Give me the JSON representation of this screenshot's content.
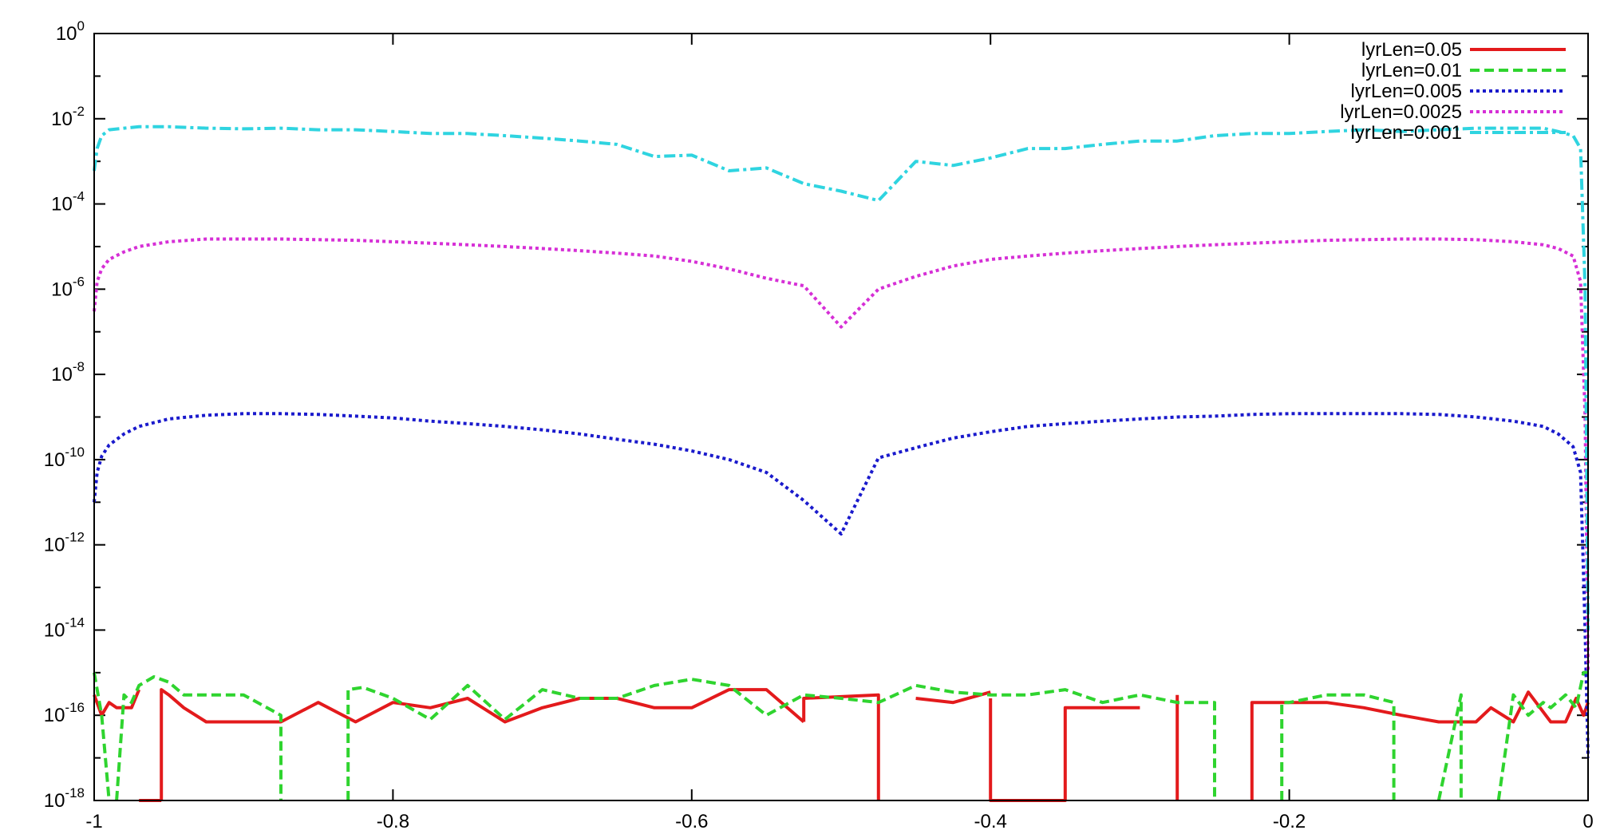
{
  "chart_data": {
    "type": "line",
    "title": "",
    "xlabel": "",
    "ylabel": "",
    "xlim": [
      -1,
      0
    ],
    "ylim": [
      1e-18,
      1
    ],
    "y_scale": "log",
    "grid": false,
    "legend_position": "top-right",
    "x_ticks": [
      {
        "value": -1,
        "label": "-1"
      },
      {
        "value": -0.8,
        "label": "-0.8"
      },
      {
        "value": -0.6,
        "label": "-0.6"
      },
      {
        "value": -0.4,
        "label": "-0.4"
      },
      {
        "value": -0.2,
        "label": "-0.2"
      },
      {
        "value": 0,
        "label": "0"
      }
    ],
    "y_ticks": [
      {
        "exp": 0,
        "base": "10",
        "sup": "0"
      },
      {
        "exp": -2,
        "base": "10",
        "sup": "-2"
      },
      {
        "exp": -4,
        "base": "10",
        "sup": "-4"
      },
      {
        "exp": -6,
        "base": "10",
        "sup": "-6"
      },
      {
        "exp": -8,
        "base": "10",
        "sup": "-8"
      },
      {
        "exp": -10,
        "base": "10",
        "sup": "-10"
      },
      {
        "exp": -12,
        "base": "10",
        "sup": "-12"
      },
      {
        "exp": -14,
        "base": "10",
        "sup": "-14"
      },
      {
        "exp": -16,
        "base": "10",
        "sup": "-16"
      },
      {
        "exp": -18,
        "base": "10",
        "sup": "-18"
      }
    ],
    "series": [
      {
        "name": "lyrLen=0.05",
        "color": "#e31a1c",
        "dash": "solid",
        "x": [
          -1.0,
          -0.995,
          -0.99,
          -0.985,
          -0.98,
          -0.975,
          -0.97,
          -0.97,
          -0.97,
          -0.955,
          -0.955,
          -0.955,
          -0.95,
          -0.94,
          -0.925,
          -0.9,
          -0.875,
          -0.85,
          -0.825,
          -0.8,
          -0.775,
          -0.75,
          -0.725,
          -0.7,
          -0.675,
          -0.65,
          -0.625,
          -0.6,
          -0.575,
          -0.55,
          -0.525,
          -0.525,
          -0.525,
          -0.475,
          -0.475,
          -0.475,
          -0.45,
          -0.425,
          -0.4,
          -0.4,
          -0.4,
          -0.35,
          -0.35,
          -0.35,
          -0.3,
          -0.275,
          -0.275,
          -0.275,
          -0.225,
          -0.225,
          -0.225,
          -0.2,
          -0.175,
          -0.15,
          -0.125,
          -0.1,
          -0.075,
          -0.065,
          -0.05,
          -0.04,
          -0.025,
          -0.015,
          -0.008,
          -0.003,
          0.0
        ],
        "y": [
          3e-16,
          1e-16,
          2e-16,
          1.5e-16,
          1.5e-16,
          1.5e-16,
          4e-16,
          1e-18,
          1e-18,
          1e-18,
          1e-18,
          4e-16,
          3e-16,
          1.5e-16,
          7e-17,
          7e-17,
          7e-17,
          2e-16,
          7e-17,
          2e-16,
          1.5e-16,
          2.5e-16,
          7e-17,
          1.5e-16,
          2.5e-16,
          2.5e-16,
          1.5e-16,
          1.5e-16,
          4e-16,
          4e-16,
          7e-17,
          7e-17,
          2.5e-16,
          3e-16,
          1e-18,
          1e-18,
          2.5e-16,
          2e-16,
          3.5e-16,
          2.5e-16,
          1e-18,
          1e-18,
          1.5e-16,
          1.5e-16,
          1.5e-16,
          3e-16,
          1e-18,
          1e-18,
          1e-18,
          2e-16,
          2e-16,
          2e-16,
          2e-16,
          1.5e-16,
          1e-16,
          7e-17,
          7e-17,
          1.5e-16,
          7e-17,
          3.5e-16,
          7e-17,
          7e-17,
          2.5e-16,
          1e-16,
          2e-16
        ],
        "null_after": [
          6,
          9,
          30,
          35,
          38,
          44,
          47
        ]
      },
      {
        "name": "lyrLen=0.01",
        "color": "#2fd42f",
        "dash": "dashed",
        "x": [
          -1.0,
          -0.995,
          -0.99,
          -0.985,
          -0.98,
          -0.975,
          -0.97,
          -0.96,
          -0.95,
          -0.94,
          -0.925,
          -0.9,
          -0.875,
          -0.875,
          -0.83,
          -0.83,
          -0.82,
          -0.8,
          -0.775,
          -0.75,
          -0.725,
          -0.7,
          -0.675,
          -0.65,
          -0.625,
          -0.6,
          -0.575,
          -0.55,
          -0.525,
          -0.5,
          -0.475,
          -0.45,
          -0.425,
          -0.4,
          -0.375,
          -0.35,
          -0.325,
          -0.3,
          -0.275,
          -0.25,
          -0.25,
          -0.205,
          -0.205,
          -0.2,
          -0.175,
          -0.15,
          -0.13,
          -0.13,
          -0.1,
          -0.085,
          -0.085,
          -0.06,
          -0.05,
          -0.04,
          -0.03,
          -0.025,
          -0.015,
          -0.008,
          -0.003,
          0.0
        ],
        "y": [
          1e-15,
          1e-16,
          1e-18,
          1e-18,
          3e-16,
          2e-16,
          5e-16,
          8e-16,
          6e-16,
          3e-16,
          3e-16,
          3e-16,
          1e-16,
          1e-18,
          1e-18,
          4e-16,
          4.5e-16,
          2.5e-16,
          8e-17,
          5e-16,
          8e-17,
          4e-16,
          2.5e-16,
          2.5e-16,
          5e-16,
          7e-16,
          5e-16,
          1e-16,
          3e-16,
          2.5e-16,
          2e-16,
          5e-16,
          3.5e-16,
          3e-16,
          3e-16,
          4e-16,
          2e-16,
          3e-16,
          2e-16,
          2e-16,
          1e-18,
          1e-18,
          2e-16,
          2e-16,
          3e-16,
          3e-16,
          2e-16,
          1e-18,
          1e-18,
          3e-16,
          1e-18,
          1e-18,
          3e-16,
          1e-16,
          2e-16,
          1.5e-16,
          3e-16,
          1.5e-16,
          1e-15,
          1e-15
        ],
        "null_after": [
          2,
          13,
          40,
          47,
          50
        ]
      },
      {
        "name": "lyrLen=0.005",
        "color": "#1a1acc",
        "dash": "dotted",
        "x": [
          -1.0,
          -0.998,
          -0.995,
          -0.99,
          -0.98,
          -0.97,
          -0.95,
          -0.925,
          -0.9,
          -0.875,
          -0.85,
          -0.825,
          -0.8,
          -0.775,
          -0.75,
          -0.725,
          -0.7,
          -0.675,
          -0.65,
          -0.625,
          -0.6,
          -0.575,
          -0.55,
          -0.525,
          -0.5,
          -0.475,
          -0.45,
          -0.425,
          -0.4,
          -0.375,
          -0.35,
          -0.325,
          -0.3,
          -0.275,
          -0.25,
          -0.225,
          -0.2,
          -0.175,
          -0.15,
          -0.125,
          -0.1,
          -0.075,
          -0.05,
          -0.03,
          -0.02,
          -0.01,
          -0.005,
          -0.002,
          0.0
        ],
        "y": [
          1e-11,
          5e-11,
          1.2e-10,
          2.2e-10,
          4e-10,
          6e-10,
          9e-10,
          1.1e-09,
          1.2e-09,
          1.2e-09,
          1.15e-09,
          1.05e-09,
          9.5e-10,
          8e-10,
          7e-10,
          6e-10,
          5e-10,
          4e-10,
          3e-10,
          2.3e-10,
          1.6e-10,
          1e-10,
          5e-11,
          1.1e-11,
          1.8e-12,
          1.1e-10,
          1.9e-10,
          3.2e-10,
          4.5e-10,
          6e-10,
          7e-10,
          8e-10,
          9e-10,
          1e-09,
          1.05e-09,
          1.15e-09,
          1.2e-09,
          1.2e-09,
          1.2e-09,
          1.2e-09,
          1.15e-09,
          1e-09,
          8e-10,
          6e-10,
          4e-10,
          2e-10,
          5e-11,
          1e-14,
          1e-17
        ],
        "null_after": []
      },
      {
        "name": "lyrLen=0.0025",
        "color": "#d62fd6",
        "dash": "dotted",
        "x": [
          -1.0,
          -0.998,
          -0.995,
          -0.99,
          -0.98,
          -0.97,
          -0.95,
          -0.925,
          -0.9,
          -0.875,
          -0.85,
          -0.825,
          -0.8,
          -0.775,
          -0.75,
          -0.725,
          -0.7,
          -0.675,
          -0.65,
          -0.625,
          -0.6,
          -0.575,
          -0.55,
          -0.525,
          -0.5,
          -0.475,
          -0.45,
          -0.425,
          -0.4,
          -0.375,
          -0.35,
          -0.325,
          -0.3,
          -0.275,
          -0.25,
          -0.225,
          -0.2,
          -0.175,
          -0.15,
          -0.125,
          -0.1,
          -0.075,
          -0.05,
          -0.03,
          -0.02,
          -0.01,
          -0.005,
          -0.002,
          0.0
        ],
        "y": [
          3e-07,
          1.5e-06,
          3e-06,
          5e-06,
          7.5e-06,
          1e-05,
          1.3e-05,
          1.5e-05,
          1.5e-05,
          1.5e-05,
          1.45e-05,
          1.4e-05,
          1.3e-05,
          1.2e-05,
          1.1e-05,
          1e-05,
          9e-06,
          8e-06,
          7e-06,
          6e-06,
          4.5e-06,
          3e-06,
          1.8e-06,
          1.2e-06,
          1.3e-07,
          1e-06,
          2e-06,
          3.5e-06,
          5e-06,
          6e-06,
          7e-06,
          8e-06,
          9e-06,
          1e-05,
          1.1e-05,
          1.2e-05,
          1.3e-05,
          1.4e-05,
          1.45e-05,
          1.5e-05,
          1.5e-05,
          1.45e-05,
          1.3e-05,
          1.1e-05,
          9e-06,
          6e-06,
          1.5e-06,
          1e-09,
          1e-15
        ],
        "null_after": []
      },
      {
        "name": "lyrLen=0.001",
        "color": "#2fd4e0",
        "dash": "dashdot",
        "x": [
          -1.0,
          -0.998,
          -0.995,
          -0.99,
          -0.98,
          -0.97,
          -0.95,
          -0.925,
          -0.9,
          -0.875,
          -0.85,
          -0.825,
          -0.8,
          -0.775,
          -0.75,
          -0.725,
          -0.7,
          -0.675,
          -0.65,
          -0.625,
          -0.6,
          -0.575,
          -0.55,
          -0.525,
          -0.5,
          -0.475,
          -0.45,
          -0.425,
          -0.4,
          -0.375,
          -0.35,
          -0.325,
          -0.3,
          -0.275,
          -0.25,
          -0.225,
          -0.2,
          -0.175,
          -0.15,
          -0.125,
          -0.1,
          -0.075,
          -0.05,
          -0.03,
          -0.02,
          -0.01,
          -0.005,
          -0.002,
          0.0
        ],
        "y": [
          0.0006,
          0.002,
          0.004,
          0.0055,
          0.006,
          0.0065,
          0.0065,
          0.006,
          0.0058,
          0.006,
          0.0055,
          0.0055,
          0.005,
          0.0045,
          0.0045,
          0.004,
          0.0035,
          0.003,
          0.0025,
          0.0013,
          0.0014,
          0.0006,
          0.0007,
          0.0003,
          0.0002,
          0.00012,
          0.001,
          0.0008,
          0.0012,
          0.002,
          0.002,
          0.0025,
          0.003,
          0.003,
          0.004,
          0.0045,
          0.0045,
          0.005,
          0.0055,
          0.005,
          0.0055,
          0.006,
          0.006,
          0.006,
          0.005,
          0.004,
          0.002,
          1e-06,
          1e-14
        ],
        "null_after": []
      }
    ]
  }
}
